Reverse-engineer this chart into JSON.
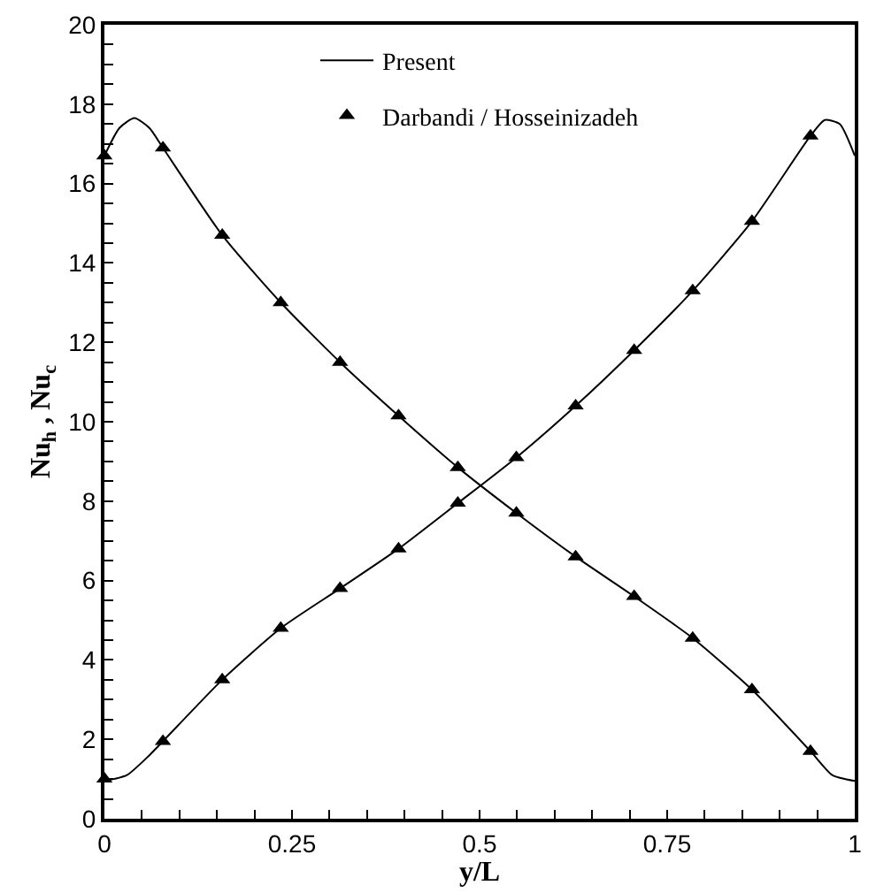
{
  "chart_data": {
    "type": "line",
    "xlabel": "y/L",
    "ylabel": "Nu$_{h}$ , Nu$_{c}$",
    "xlim": [
      0,
      1
    ],
    "ylim": [
      0,
      20
    ],
    "xticks": [
      0,
      {
        "value": 0.05,
        "label": null
      },
      {
        "value": 0.1,
        "label": null
      },
      {
        "value": 0.15,
        "label": null
      },
      {
        "value": 0.2,
        "label": null
      },
      0.25,
      {
        "value": 0.3,
        "label": null
      },
      {
        "value": 0.35,
        "label": null
      },
      {
        "value": 0.4,
        "label": null
      },
      {
        "value": 0.45,
        "label": null
      },
      0.5,
      {
        "value": 0.55,
        "label": null
      },
      {
        "value": 0.6,
        "label": null
      },
      {
        "value": 0.65,
        "label": null
      },
      {
        "value": 0.7,
        "label": null
      },
      0.75,
      {
        "value": 0.8,
        "label": null
      },
      {
        "value": 0.85,
        "label": null
      },
      {
        "value": 0.9,
        "label": null
      },
      {
        "value": 0.95,
        "label": null
      },
      1
    ],
    "yticks": [
      0,
      {
        "value": 0.5,
        "label": null
      },
      {
        "value": 1,
        "label": null
      },
      {
        "value": 1.5,
        "label": null
      },
      2,
      {
        "value": 2.5,
        "label": null
      },
      {
        "value": 3,
        "label": null
      },
      {
        "value": 3.5,
        "label": null
      },
      4,
      {
        "value": 4.5,
        "label": null
      },
      {
        "value": 5,
        "label": null
      },
      {
        "value": 5.5,
        "label": null
      },
      6,
      {
        "value": 6.5,
        "label": null
      },
      {
        "value": 7,
        "label": null
      },
      {
        "value": 7.5,
        "label": null
      },
      8,
      {
        "value": 8.5,
        "label": null
      },
      {
        "value": 9,
        "label": null
      },
      {
        "value": 9.5,
        "label": null
      },
      10,
      {
        "value": 10.5,
        "label": null
      },
      {
        "value": 11,
        "label": null
      },
      {
        "value": 11.5,
        "label": null
      },
      12,
      {
        "value": 12.5,
        "label": null
      },
      {
        "value": 13,
        "label": null
      },
      {
        "value": 13.5,
        "label": null
      },
      14,
      {
        "value": 14.5,
        "label": null
      },
      {
        "value": 15,
        "label": null
      },
      {
        "value": 15.5,
        "label": null
      },
      16,
      {
        "value": 16.5,
        "label": null
      },
      {
        "value": 17,
        "label": null
      },
      {
        "value": 17.5,
        "label": null
      },
      18,
      {
        "value": 18.5,
        "label": null
      },
      {
        "value": 19,
        "label": null
      },
      {
        "value": 19.5,
        "label": null
      },
      20
    ],
    "grid": false,
    "legend": "top",
    "series": [
      {
        "name": "Present",
        "color": "#000000",
        "line_style": "solid",
        "marker": "none",
        "x": [
          0,
          0.02,
          0.04,
          0.06,
          0.078,
          0.157,
          0.235,
          0.314,
          0.392,
          0.471,
          0.549,
          0.628,
          0.706,
          0.784,
          0.863,
          0.941,
          0.97,
          1
        ],
        "values": [
          16.7,
          17.4,
          17.65,
          17.4,
          16.9,
          14.7,
          13.0,
          11.5,
          10.15,
          8.85,
          7.7,
          6.6,
          5.6,
          4.55,
          3.25,
          1.7,
          1.1,
          0.95
        ]
      },
      {
        "color": "#000000",
        "line_style": "solid",
        "marker": "none",
        "x": [
          0,
          0.03,
          0.06,
          0.078,
          0.157,
          0.235,
          0.314,
          0.392,
          0.471,
          0.549,
          0.628,
          0.706,
          0.784,
          0.863,
          0.941,
          0.96,
          0.98,
          1
        ],
        "values": [
          0.95,
          1.1,
          1.6,
          1.95,
          3.5,
          4.8,
          5.8,
          6.8,
          7.95,
          9.1,
          10.4,
          11.8,
          13.3,
          15.05,
          17.2,
          17.6,
          17.5,
          16.7
        ]
      },
      {
        "name": "Darbandi / Hosseinizadeh",
        "type": "scatter",
        "color": "#000000",
        "marker": "triangle",
        "x": [
          0,
          0.078,
          0.157,
          0.235,
          0.314,
          0.392,
          0.471,
          0.549,
          0.628,
          0.706,
          0.784,
          0.863,
          0.941
        ],
        "values": [
          16.7,
          16.9,
          14.7,
          13.0,
          11.5,
          10.15,
          8.85,
          7.7,
          6.6,
          5.6,
          4.55,
          3.25,
          1.7
        ]
      },
      {
        "type": "scatter",
        "color": "#000000",
        "marker": "triangle",
        "x": [
          0,
          0.078,
          0.157,
          0.235,
          0.314,
          0.392,
          0.471,
          0.549,
          0.628,
          0.706,
          0.784,
          0.863,
          0.941
        ],
        "values": [
          1.0,
          1.95,
          3.5,
          4.8,
          5.8,
          6.8,
          7.95,
          9.1,
          10.4,
          11.8,
          13.3,
          15.05,
          17.2
        ]
      }
    ]
  }
}
